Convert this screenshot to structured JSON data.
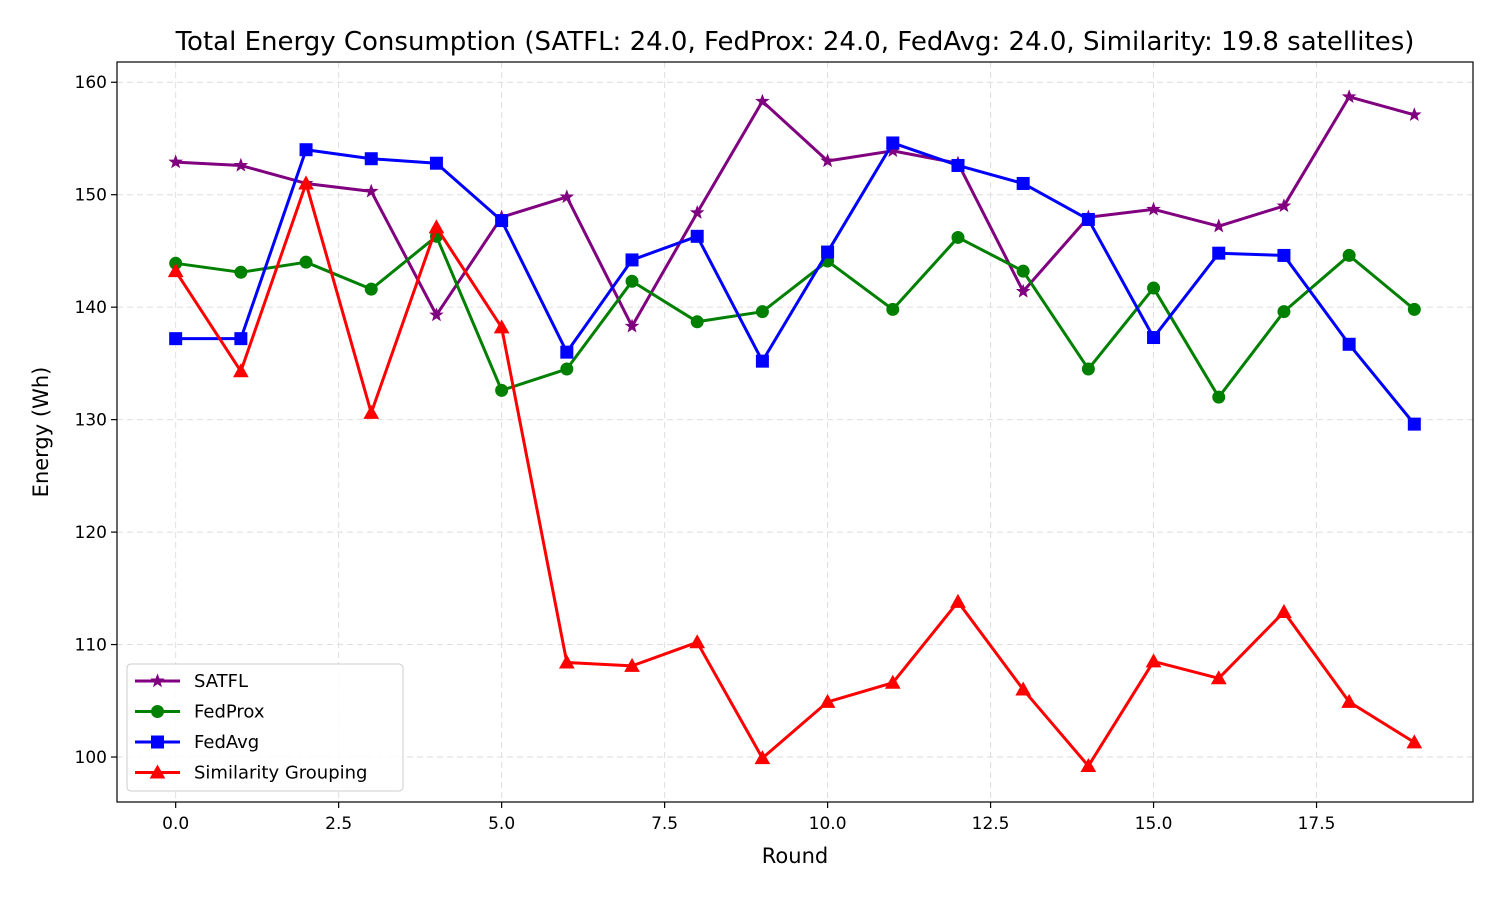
{
  "chart_data": {
    "type": "line",
    "title": "Total Energy Consumption (SATFL: 24.0, FedProx: 24.0, FedAvg: 24.0, Similarity: 19.8 satellites)",
    "xlabel": "Round",
    "ylabel": "Energy (Wh)",
    "xlim": [
      -0.9,
      19.9
    ],
    "ylim": [
      96,
      161.8
    ],
    "xticks": [
      0.0,
      2.5,
      5.0,
      7.5,
      10.0,
      12.5,
      15.0,
      17.5
    ],
    "xtick_labels": [
      "0.0",
      "2.5",
      "5.0",
      "7.5",
      "10.0",
      "12.5",
      "15.0",
      "17.5"
    ],
    "yticks": [
      100,
      110,
      120,
      130,
      140,
      150,
      160
    ],
    "ytick_labels": [
      "100",
      "110",
      "120",
      "130",
      "140",
      "150",
      "160"
    ],
    "grid": true,
    "legend_position": "bottom-left",
    "x": [
      0,
      1,
      2,
      3,
      4,
      5,
      6,
      7,
      8,
      9,
      10,
      11,
      12,
      13,
      14,
      15,
      16,
      17,
      18,
      19
    ],
    "series": [
      {
        "name": "SATFL",
        "color": "#800080",
        "marker": "star",
        "values": [
          152.9,
          152.6,
          151.0,
          150.3,
          139.3,
          148.0,
          149.8,
          138.3,
          148.4,
          158.3,
          153.0,
          153.9,
          152.8,
          141.4,
          148.0,
          148.7,
          147.2,
          149.0,
          158.7,
          157.1
        ]
      },
      {
        "name": "FedProx",
        "color": "#008000",
        "marker": "circle",
        "values": [
          143.9,
          143.1,
          144.0,
          141.6,
          146.3,
          132.6,
          134.5,
          142.3,
          138.7,
          139.6,
          144.1,
          139.8,
          146.2,
          143.2,
          134.5,
          141.7,
          132.0,
          139.6,
          144.6,
          139.8
        ]
      },
      {
        "name": "FedAvg",
        "color": "#0000ff",
        "marker": "square",
        "values": [
          137.2,
          137.2,
          154.0,
          153.2,
          152.8,
          147.7,
          136.0,
          144.2,
          146.3,
          135.2,
          144.9,
          154.6,
          152.6,
          151.0,
          147.8,
          137.3,
          144.8,
          144.6,
          136.7,
          129.6
        ]
      },
      {
        "name": "Similarity Grouping",
        "color": "#ff0000",
        "marker": "triangle",
        "values": [
          143.2,
          134.3,
          151.0,
          130.6,
          147.1,
          138.2,
          108.4,
          108.1,
          110.2,
          99.9,
          104.9,
          106.6,
          113.8,
          106.0,
          99.2,
          108.5,
          107.0,
          112.9,
          104.9,
          101.3
        ]
      }
    ]
  }
}
